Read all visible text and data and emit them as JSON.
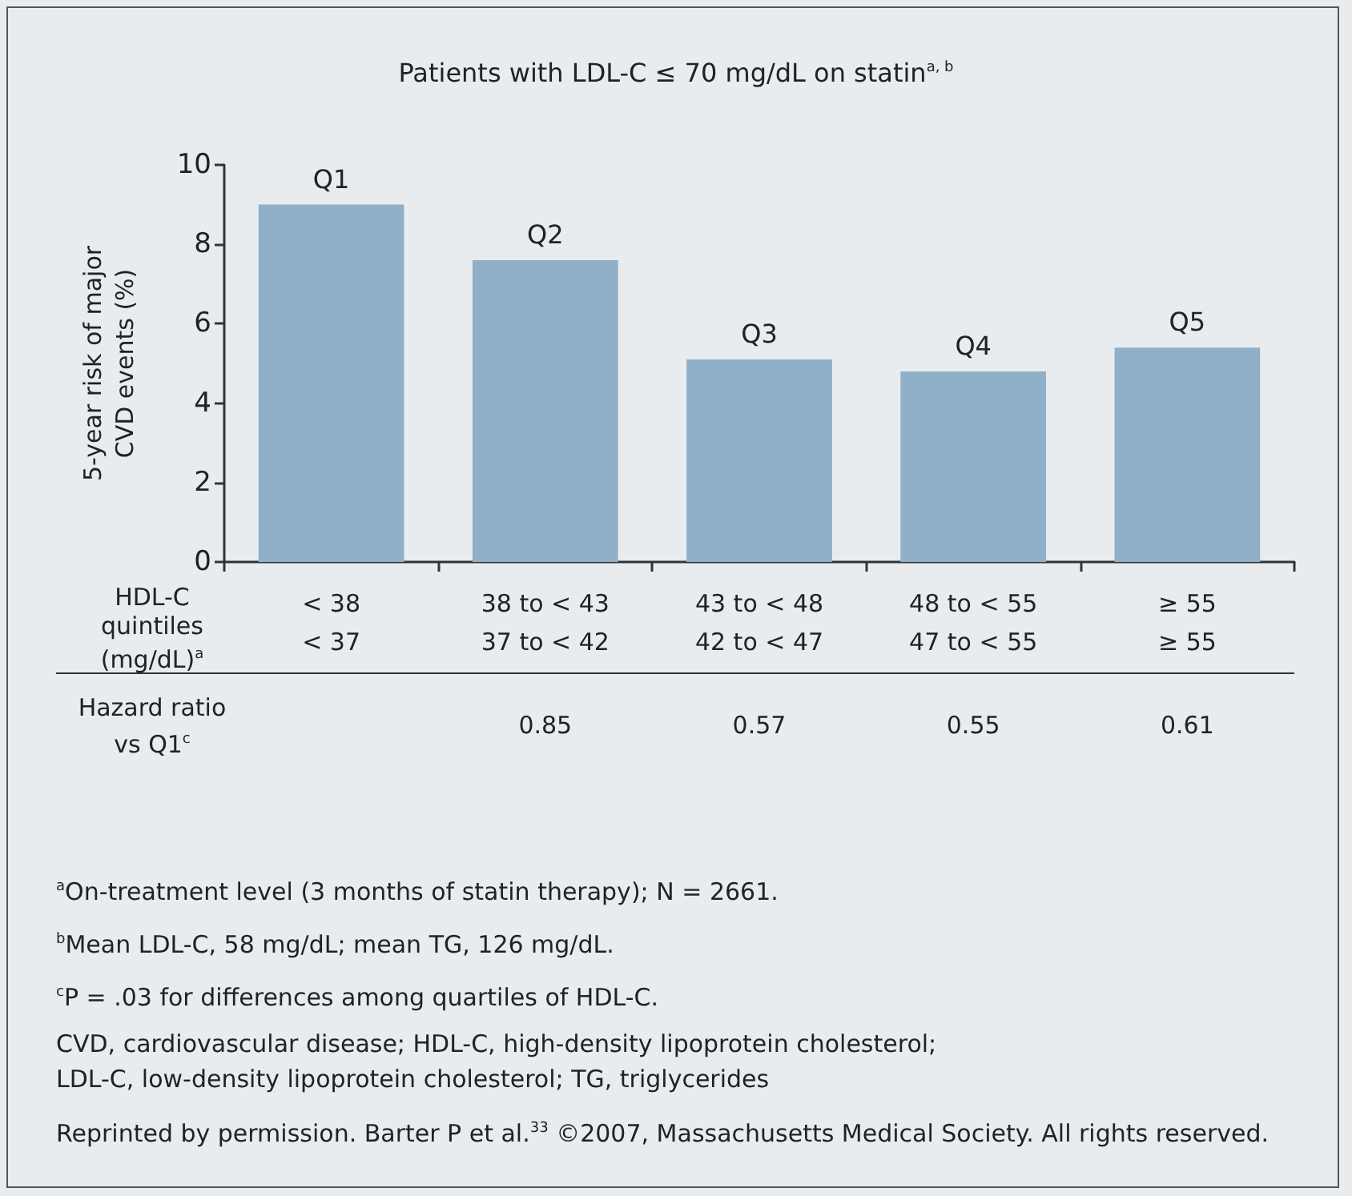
{
  "chart_data": {
    "type": "bar",
    "title": "Patients with LDL-C ≤ 70 mg/dL on statin$^{a, b}$",
    "ylabel": "5-year risk of major\nCVD events (%)",
    "categories": [
      "< 38\n< 37",
      "38 to < 43\n37 to < 42",
      "43 to < 48\n42 to < 47",
      "48 to < 55\n47 to < 55",
      "≥ 55\n≥ 55"
    ],
    "values": [
      9.0,
      7.6,
      5.1,
      4.8,
      5.4
    ],
    "color": "#8fb0c8",
    "ylim": [
      0,
      10
    ],
    "yticks": [
      0,
      2,
      4,
      6,
      8,
      10
    ],
    "grid": false,
    "annotations": [
      {
        "text": "Q1",
        "x": "< 38\n< 37",
        "y": 9.0
      },
      {
        "text": "Q2",
        "x": "38 to < 43\n37 to < 42",
        "y": 7.6
      },
      {
        "text": "Q3",
        "x": "43 to < 48\n42 to < 47",
        "y": 5.1
      },
      {
        "text": "Q4",
        "x": "48 to < 55\n47 to < 55",
        "y": 4.8
      },
      {
        "text": "Q5",
        "x": "≥ 55\n≥ 55",
        "y": 5.4
      },
      "HDL-C\nquintiles\n(mg/dL)$^{a}$",
      "Hazard ratio\nvs Q1$^{c}$",
      "0.85",
      "0.57",
      "0.55",
      "0.61",
      "$^{a}$On-treatment level (3 months of statin therapy); N = 2661.",
      "$^{b}$Mean LDL-C, 58 mg/dL; mean TG, 126 mg/dL.",
      "$^{c}$P = .03 for differences among quartiles of HDL-C.",
      "CVD, cardiovascular disease; HDL-C, high-density lipoprotein cholesterol;\nLDL-C, low-density lipoprotein cholesterol; TG, triglycerides",
      "Reprinted by permission. Barter P et al.$^{33}$ ©2007, Massachusetts Medical Society. All rights reserved."
    ]
  }
}
